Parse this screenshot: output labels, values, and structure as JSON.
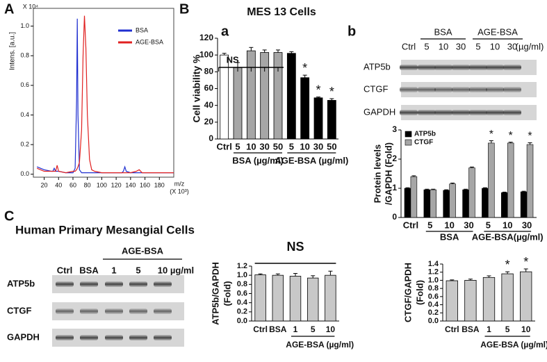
{
  "figure": {
    "panels": [
      "A",
      "B",
      "C"
    ],
    "b_title": "MES 13 Cells",
    "b_sub": [
      "a",
      "b"
    ],
    "c_title": "Human Primary Mesangial Cells"
  },
  "blots": [
    {
      "groups": [
        "BSA",
        "AGE-BSA"
      ],
      "lanes": [
        "Ctrl",
        "5",
        "10",
        "30",
        "5",
        "10",
        "30"
      ],
      "unit": "(µg/ml)",
      "rows": [
        "ATP5b",
        "CTGF",
        "GAPDH"
      ]
    },
    {
      "groups": [
        "AGE-BSA"
      ],
      "lanes": [
        "Ctrl",
        "BSA",
        "1",
        "5",
        "10"
      ],
      "unit": "µg/ml",
      "rows": [
        "ATP5b",
        "CTGF",
        "GAPDH"
      ]
    }
  ],
  "chart_data": [
    {
      "type": "line",
      "ylabel": "Intens. [a.u.]",
      "yunit": "X 10⁴",
      "xlabel": "m/z",
      "xunit": "(X 10³)",
      "x": [
        10,
        20,
        30,
        32,
        34,
        36,
        38,
        40,
        50,
        60,
        63,
        65,
        66,
        67,
        69,
        72,
        74,
        76,
        78,
        80,
        83,
        86,
        90,
        100,
        120,
        128,
        130,
        132,
        134,
        140,
        148,
        152,
        156,
        170,
        190,
        200
      ],
      "series": [
        {
          "name": "BSA",
          "color": "#1f2fd0",
          "values": [
            0.05,
            0.03,
            0.02,
            0.02,
            0.04,
            0.02,
            0.02,
            0.02,
            0.01,
            0.01,
            0.04,
            0.5,
            1.05,
            0.4,
            0.03,
            0.01,
            0.01,
            0.01,
            0.01,
            0.01,
            0.01,
            0.01,
            0.01,
            0.01,
            0.01,
            0.01,
            0.02,
            0.05,
            0.02,
            0.01,
            0.01,
            0.01,
            0.01,
            0.01,
            0.01,
            0.01
          ]
        },
        {
          "name": "AGE-BSA",
          "color": "#e02020",
          "values": [
            0.04,
            0.02,
            0.02,
            0.02,
            0.02,
            0.02,
            0.06,
            0.02,
            0.01,
            0.02,
            0.02,
            0.03,
            0.04,
            0.05,
            0.08,
            0.3,
            0.8,
            1.07,
            0.85,
            0.4,
            0.1,
            0.03,
            0.02,
            0.01,
            0.01,
            0.01,
            0.01,
            0.01,
            0.01,
            0.01,
            0.02,
            0.03,
            0.01,
            0.01,
            0.01,
            0.01
          ]
        }
      ],
      "xlim": [
        5,
        200
      ],
      "xticks": [
        20,
        40,
        60,
        80,
        100,
        120,
        140,
        160,
        180
      ],
      "ylim": [
        -0.02,
        1.12
      ],
      "yticks": [
        {
          "value": 0,
          "label": "0.0"
        },
        {
          "value": 0.2,
          "label": "0.2"
        },
        {
          "value": 0.4,
          "label": "0.4"
        },
        {
          "value": 0.6,
          "label": "0.6"
        },
        {
          "value": 0.8,
          "label": "0.8"
        },
        {
          "value": 1,
          "label": "1.0"
        }
      ],
      "legend": "upper right"
    },
    {
      "type": "bar",
      "ylabel": "Cell viability %",
      "categories": [
        "Ctrl",
        "5",
        "10",
        "30",
        "50",
        "5",
        "10",
        "30",
        "50"
      ],
      "values": [
        100,
        85,
        105,
        103,
        103,
        102,
        73,
        49,
        46
      ],
      "errors": [
        2,
        6,
        4,
        3,
        3,
        2,
        3,
        1,
        2
      ],
      "colors": [
        "#ffffff",
        "#a6a6a6",
        "#a6a6a6",
        "#a6a6a6",
        "#a6a6a6",
        "#000000",
        "#000000",
        "#000000",
        "#000000"
      ],
      "significance": [
        null,
        null,
        null,
        null,
        null,
        null,
        "*",
        "*",
        "*"
      ],
      "ns_label": "NS",
      "group_labels": [
        "BSA (µg/ml)",
        "AGE-BSA (µg/ml)"
      ],
      "ylim": [
        0,
        120
      ],
      "yticks": [
        0,
        20,
        40,
        60,
        80,
        100,
        120
      ]
    },
    {
      "type": "grouped_bar",
      "ylabel": [
        "Protein levels",
        "/GAPDH (Fold)"
      ],
      "categories": [
        "Ctrl",
        "5",
        "10",
        "30",
        "5",
        "10",
        "30"
      ],
      "series": [
        {
          "name": "ATP5b",
          "color": "#000000",
          "values": [
            1,
            0.95,
            0.93,
            0.95,
            1.0,
            0.85,
            0.88
          ],
          "errors": [
            0.02,
            0.02,
            0.02,
            0.02,
            0.02,
            0.02,
            0.02
          ]
        },
        {
          "name": "CTGF",
          "color": "#a6a6a6",
          "values": [
            1.4,
            0.95,
            1.15,
            1.7,
            2.55,
            2.55,
            2.5
          ],
          "errors": [
            0.03,
            0.02,
            0.03,
            0.03,
            0.08,
            0.03,
            0.06
          ]
        }
      ],
      "significance": [
        null,
        null,
        null,
        null,
        "*",
        "*",
        "*"
      ],
      "group_labels": [
        "BSA",
        "AGE-BSA(µg/ml)"
      ],
      "ylim": [
        0,
        3
      ],
      "yticks": [
        0,
        1,
        2,
        3
      ],
      "legend": "upper left"
    },
    {
      "type": "bar",
      "ylabel": [
        "ATP5b/GAPDH",
        "(Fold)"
      ],
      "categories": [
        "Ctrl",
        "BSA",
        "1",
        "5",
        "10"
      ],
      "values": [
        1.01,
        1.0,
        0.98,
        0.94,
        1.0
      ],
      "errors": [
        0.02,
        0.03,
        0.06,
        0.05,
        0.09
      ],
      "colors": [
        "#c8c8c8",
        "#c8c8c8",
        "#c8c8c8",
        "#c8c8c8",
        "#c8c8c8"
      ],
      "ns_label": "NS",
      "group_labels": [
        "AGE-BSA (µg/ml)"
      ],
      "ylim": [
        0,
        1.2
      ],
      "yticks": [
        {
          "value": 0,
          "label": "0.0"
        },
        {
          "value": 0.2,
          "label": "0.2"
        },
        {
          "value": 0.4,
          "label": "0.4"
        },
        {
          "value": 0.6,
          "label": "0.6"
        },
        {
          "value": 0.8,
          "label": "0.8"
        },
        {
          "value": 1,
          "label": "1.0"
        },
        {
          "value": 1.2,
          "label": "1.2"
        }
      ]
    },
    {
      "type": "bar",
      "ylabel": [
        "CTGF/GAPDH",
        "(Fold)"
      ],
      "categories": [
        "Ctrl",
        "BSA",
        "1",
        "5",
        "10"
      ],
      "values": [
        0.99,
        1.0,
        1.07,
        1.16,
        1.21
      ],
      "errors": [
        0.02,
        0.03,
        0.04,
        0.05,
        0.07
      ],
      "colors": [
        "#c8c8c8",
        "#c8c8c8",
        "#c8c8c8",
        "#c8c8c8",
        "#c8c8c8"
      ],
      "significance": [
        null,
        null,
        null,
        "*",
        "*"
      ],
      "group_labels": [
        "AGE-BSA (µg/ml)"
      ],
      "ylim": [
        0,
        1.4
      ],
      "yticks": [
        {
          "value": 0,
          "label": "0.0"
        },
        {
          "value": 0.2,
          "label": "0.2"
        },
        {
          "value": 0.4,
          "label": "0.4"
        },
        {
          "value": 0.6,
          "label": "0.6"
        },
        {
          "value": 0.8,
          "label": "0.8"
        },
        {
          "value": 1,
          "label": "1.0"
        },
        {
          "value": 1.2,
          "label": "1.2"
        },
        {
          "value": 1.4,
          "label": "1.4"
        }
      ]
    }
  ]
}
